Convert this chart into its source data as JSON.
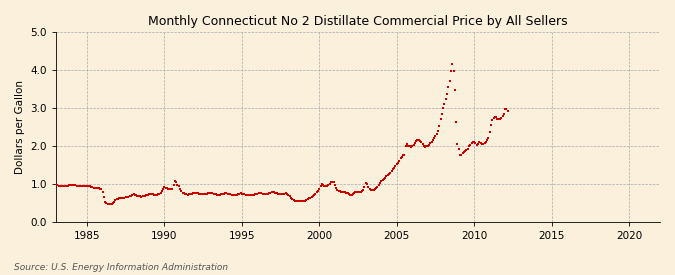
{
  "title": "Monthly Connecticut No 2 Distillate Commercial Price by All Sellers",
  "ylabel": "Dollars per Gallon",
  "source": "Source: U.S. Energy Information Administration",
  "background_color": "#faf0dc",
  "line_color": "#cc0000",
  "xlim": [
    1983.0,
    2022.0
  ],
  "ylim": [
    0.0,
    5.0
  ],
  "yticks": [
    0.0,
    1.0,
    2.0,
    3.0,
    4.0,
    5.0
  ],
  "xticks": [
    1985,
    1990,
    1995,
    2000,
    2005,
    2010,
    2015,
    2020
  ],
  "data": [
    [
      1983.0,
      0.961
    ],
    [
      1983.083,
      0.955
    ],
    [
      1983.167,
      0.952
    ],
    [
      1983.25,
      0.949
    ],
    [
      1983.333,
      0.944
    ],
    [
      1983.417,
      0.94
    ],
    [
      1983.5,
      0.936
    ],
    [
      1983.583,
      0.94
    ],
    [
      1983.667,
      0.944
    ],
    [
      1983.75,
      0.952
    ],
    [
      1983.833,
      0.958
    ],
    [
      1983.917,
      0.963
    ],
    [
      1984.0,
      0.97
    ],
    [
      1984.083,
      0.965
    ],
    [
      1984.167,
      0.96
    ],
    [
      1984.25,
      0.955
    ],
    [
      1984.333,
      0.948
    ],
    [
      1984.417,
      0.943
    ],
    [
      1984.5,
      0.935
    ],
    [
      1984.583,
      0.93
    ],
    [
      1984.667,
      0.928
    ],
    [
      1984.75,
      0.93
    ],
    [
      1984.833,
      0.935
    ],
    [
      1984.917,
      0.94
    ],
    [
      1985.0,
      0.942
    ],
    [
      1985.083,
      0.938
    ],
    [
      1985.167,
      0.93
    ],
    [
      1985.25,
      0.92
    ],
    [
      1985.333,
      0.91
    ],
    [
      1985.417,
      0.9
    ],
    [
      1985.5,
      0.892
    ],
    [
      1985.583,
      0.888
    ],
    [
      1985.667,
      0.882
    ],
    [
      1985.75,
      0.878
    ],
    [
      1985.833,
      0.872
    ],
    [
      1985.917,
      0.868
    ],
    [
      1986.0,
      0.78
    ],
    [
      1986.083,
      0.64
    ],
    [
      1986.167,
      0.53
    ],
    [
      1986.25,
      0.49
    ],
    [
      1986.333,
      0.47
    ],
    [
      1986.417,
      0.462
    ],
    [
      1986.5,
      0.465
    ],
    [
      1986.583,
      0.475
    ],
    [
      1986.667,
      0.5
    ],
    [
      1986.75,
      0.53
    ],
    [
      1986.833,
      0.56
    ],
    [
      1986.917,
      0.59
    ],
    [
      1987.0,
      0.61
    ],
    [
      1987.083,
      0.618
    ],
    [
      1987.167,
      0.612
    ],
    [
      1987.25,
      0.62
    ],
    [
      1987.333,
      0.628
    ],
    [
      1987.417,
      0.635
    ],
    [
      1987.5,
      0.64
    ],
    [
      1987.583,
      0.648
    ],
    [
      1987.667,
      0.658
    ],
    [
      1987.75,
      0.672
    ],
    [
      1987.833,
      0.69
    ],
    [
      1987.917,
      0.71
    ],
    [
      1988.0,
      0.718
    ],
    [
      1988.083,
      0.708
    ],
    [
      1988.167,
      0.7
    ],
    [
      1988.25,
      0.688
    ],
    [
      1988.333,
      0.678
    ],
    [
      1988.417,
      0.668
    ],
    [
      1988.5,
      0.662
    ],
    [
      1988.583,
      0.665
    ],
    [
      1988.667,
      0.67
    ],
    [
      1988.75,
      0.68
    ],
    [
      1988.833,
      0.695
    ],
    [
      1988.917,
      0.715
    ],
    [
      1989.0,
      0.73
    ],
    [
      1989.083,
      0.728
    ],
    [
      1989.167,
      0.722
    ],
    [
      1989.25,
      0.718
    ],
    [
      1989.333,
      0.712
    ],
    [
      1989.417,
      0.708
    ],
    [
      1989.5,
      0.712
    ],
    [
      1989.583,
      0.72
    ],
    [
      1989.667,
      0.735
    ],
    [
      1989.75,
      0.758
    ],
    [
      1989.833,
      0.8
    ],
    [
      1989.917,
      0.855
    ],
    [
      1990.0,
      0.908
    ],
    [
      1990.083,
      0.9
    ],
    [
      1990.167,
      0.888
    ],
    [
      1990.25,
      0.875
    ],
    [
      1990.333,
      0.862
    ],
    [
      1990.417,
      0.858
    ],
    [
      1990.5,
      0.868
    ],
    [
      1990.583,
      0.975
    ],
    [
      1990.667,
      1.06
    ],
    [
      1990.75,
      1.048
    ],
    [
      1990.833,
      0.98
    ],
    [
      1990.917,
      0.942
    ],
    [
      1991.0,
      0.87
    ],
    [
      1991.083,
      0.8
    ],
    [
      1991.167,
      0.762
    ],
    [
      1991.25,
      0.745
    ],
    [
      1991.333,
      0.73
    ],
    [
      1991.417,
      0.718
    ],
    [
      1991.5,
      0.712
    ],
    [
      1991.583,
      0.718
    ],
    [
      1991.667,
      0.725
    ],
    [
      1991.75,
      0.735
    ],
    [
      1991.833,
      0.748
    ],
    [
      1991.917,
      0.762
    ],
    [
      1992.0,
      0.768
    ],
    [
      1992.083,
      0.758
    ],
    [
      1992.167,
      0.748
    ],
    [
      1992.25,
      0.74
    ],
    [
      1992.333,
      0.732
    ],
    [
      1992.417,
      0.725
    ],
    [
      1992.5,
      0.72
    ],
    [
      1992.583,
      0.722
    ],
    [
      1992.667,
      0.728
    ],
    [
      1992.75,
      0.738
    ],
    [
      1992.833,
      0.748
    ],
    [
      1992.917,
      0.758
    ],
    [
      1993.0,
      0.762
    ],
    [
      1993.083,
      0.752
    ],
    [
      1993.167,
      0.742
    ],
    [
      1993.25,
      0.732
    ],
    [
      1993.333,
      0.722
    ],
    [
      1993.417,
      0.715
    ],
    [
      1993.5,
      0.71
    ],
    [
      1993.583,
      0.712
    ],
    [
      1993.667,
      0.718
    ],
    [
      1993.75,
      0.728
    ],
    [
      1993.833,
      0.738
    ],
    [
      1993.917,
      0.748
    ],
    [
      1994.0,
      0.748
    ],
    [
      1994.083,
      0.738
    ],
    [
      1994.167,
      0.728
    ],
    [
      1994.25,
      0.718
    ],
    [
      1994.333,
      0.71
    ],
    [
      1994.417,
      0.702
    ],
    [
      1994.5,
      0.698
    ],
    [
      1994.583,
      0.7
    ],
    [
      1994.667,
      0.708
    ],
    [
      1994.75,
      0.72
    ],
    [
      1994.833,
      0.735
    ],
    [
      1994.917,
      0.748
    ],
    [
      1995.0,
      0.742
    ],
    [
      1995.083,
      0.732
    ],
    [
      1995.167,
      0.722
    ],
    [
      1995.25,
      0.712
    ],
    [
      1995.333,
      0.705
    ],
    [
      1995.417,
      0.698
    ],
    [
      1995.5,
      0.692
    ],
    [
      1995.583,
      0.695
    ],
    [
      1995.667,
      0.702
    ],
    [
      1995.75,
      0.712
    ],
    [
      1995.833,
      0.722
    ],
    [
      1995.917,
      0.732
    ],
    [
      1996.0,
      0.742
    ],
    [
      1996.083,
      0.752
    ],
    [
      1996.167,
      0.762
    ],
    [
      1996.25,
      0.755
    ],
    [
      1996.333,
      0.74
    ],
    [
      1996.417,
      0.728
    ],
    [
      1996.5,
      0.722
    ],
    [
      1996.583,
      0.728
    ],
    [
      1996.667,
      0.738
    ],
    [
      1996.75,
      0.752
    ],
    [
      1996.833,
      0.768
    ],
    [
      1996.917,
      0.782
    ],
    [
      1997.0,
      0.785
    ],
    [
      1997.083,
      0.772
    ],
    [
      1997.167,
      0.76
    ],
    [
      1997.25,
      0.748
    ],
    [
      1997.333,
      0.738
    ],
    [
      1997.417,
      0.728
    ],
    [
      1997.5,
      0.722
    ],
    [
      1997.583,
      0.722
    ],
    [
      1997.667,
      0.728
    ],
    [
      1997.75,
      0.738
    ],
    [
      1997.833,
      0.745
    ],
    [
      1997.917,
      0.738
    ],
    [
      1998.0,
      0.705
    ],
    [
      1998.083,
      0.668
    ],
    [
      1998.167,
      0.628
    ],
    [
      1998.25,
      0.598
    ],
    [
      1998.333,
      0.572
    ],
    [
      1998.417,
      0.552
    ],
    [
      1998.5,
      0.54
    ],
    [
      1998.583,
      0.538
    ],
    [
      1998.667,
      0.542
    ],
    [
      1998.75,
      0.548
    ],
    [
      1998.833,
      0.552
    ],
    [
      1998.917,
      0.548
    ],
    [
      1999.0,
      0.542
    ],
    [
      1999.083,
      0.548
    ],
    [
      1999.167,
      0.562
    ],
    [
      1999.25,
      0.588
    ],
    [
      1999.333,
      0.615
    ],
    [
      1999.417,
      0.638
    ],
    [
      1999.5,
      0.658
    ],
    [
      1999.583,
      0.678
    ],
    [
      1999.667,
      0.7
    ],
    [
      1999.75,
      0.73
    ],
    [
      1999.833,
      0.77
    ],
    [
      1999.917,
      0.82
    ],
    [
      2000.0,
      0.875
    ],
    [
      2000.083,
      0.94
    ],
    [
      2000.167,
      0.988
    ],
    [
      2000.25,
      0.968
    ],
    [
      2000.333,
      0.948
    ],
    [
      2000.417,
      0.94
    ],
    [
      2000.5,
      0.952
    ],
    [
      2000.583,
      0.975
    ],
    [
      2000.667,
      1.002
    ],
    [
      2000.75,
      1.038
    ],
    [
      2000.833,
      1.058
    ],
    [
      2000.917,
      1.038
    ],
    [
      2001.0,
      0.978
    ],
    [
      2001.083,
      0.895
    ],
    [
      2001.167,
      0.845
    ],
    [
      2001.25,
      0.822
    ],
    [
      2001.333,
      0.808
    ],
    [
      2001.417,
      0.795
    ],
    [
      2001.5,
      0.785
    ],
    [
      2001.583,
      0.78
    ],
    [
      2001.667,
      0.772
    ],
    [
      2001.75,
      0.768
    ],
    [
      2001.833,
      0.755
    ],
    [
      2001.917,
      0.722
    ],
    [
      2002.0,
      0.705
    ],
    [
      2002.083,
      0.712
    ],
    [
      2002.167,
      0.738
    ],
    [
      2002.25,
      0.768
    ],
    [
      2002.333,
      0.782
    ],
    [
      2002.417,
      0.778
    ],
    [
      2002.5,
      0.772
    ],
    [
      2002.583,
      0.778
    ],
    [
      2002.667,
      0.792
    ],
    [
      2002.75,
      0.81
    ],
    [
      2002.833,
      0.848
    ],
    [
      2002.917,
      0.918
    ],
    [
      2003.0,
      1.028
    ],
    [
      2003.083,
      0.985
    ],
    [
      2003.167,
      0.918
    ],
    [
      2003.25,
      0.862
    ],
    [
      2003.333,
      0.838
    ],
    [
      2003.417,
      0.84
    ],
    [
      2003.5,
      0.848
    ],
    [
      2003.583,
      0.862
    ],
    [
      2003.667,
      0.882
    ],
    [
      2003.75,
      0.922
    ],
    [
      2003.833,
      0.978
    ],
    [
      2003.917,
      1.028
    ],
    [
      2004.0,
      1.075
    ],
    [
      2004.083,
      1.098
    ],
    [
      2004.167,
      1.118
    ],
    [
      2004.25,
      1.148
    ],
    [
      2004.333,
      1.198
    ],
    [
      2004.417,
      1.228
    ],
    [
      2004.5,
      1.262
    ],
    [
      2004.583,
      1.295
    ],
    [
      2004.667,
      1.328
    ],
    [
      2004.75,
      1.378
    ],
    [
      2004.833,
      1.428
    ],
    [
      2004.917,
      1.478
    ],
    [
      2005.0,
      1.528
    ],
    [
      2005.083,
      1.558
    ],
    [
      2005.167,
      1.598
    ],
    [
      2005.25,
      1.668
    ],
    [
      2005.333,
      1.718
    ],
    [
      2005.417,
      1.745
    ],
    [
      2005.5,
      1.765
    ],
    [
      2005.583,
      1.992
    ],
    [
      2005.667,
      2.038
    ],
    [
      2005.75,
      2.005
    ],
    [
      2005.833,
      1.982
    ],
    [
      2005.917,
      1.968
    ],
    [
      2006.0,
      1.988
    ],
    [
      2006.083,
      2.018
    ],
    [
      2006.167,
      2.068
    ],
    [
      2006.25,
      2.118
    ],
    [
      2006.333,
      2.148
    ],
    [
      2006.417,
      2.142
    ],
    [
      2006.5,
      2.128
    ],
    [
      2006.583,
      2.098
    ],
    [
      2006.667,
      2.058
    ],
    [
      2006.75,
      1.998
    ],
    [
      2006.833,
      1.978
    ],
    [
      2006.917,
      1.988
    ],
    [
      2007.0,
      2.008
    ],
    [
      2007.083,
      2.028
    ],
    [
      2007.167,
      2.068
    ],
    [
      2007.25,
      2.108
    ],
    [
      2007.333,
      2.148
    ],
    [
      2007.417,
      2.198
    ],
    [
      2007.5,
      2.248
    ],
    [
      2007.583,
      2.308
    ],
    [
      2007.667,
      2.388
    ],
    [
      2007.75,
      2.518
    ],
    [
      2007.833,
      2.698
    ],
    [
      2007.917,
      2.838
    ],
    [
      2008.0,
      2.988
    ],
    [
      2008.083,
      3.108
    ],
    [
      2008.167,
      3.228
    ],
    [
      2008.25,
      3.378
    ],
    [
      2008.333,
      3.538
    ],
    [
      2008.417,
      3.718
    ],
    [
      2008.5,
      3.978
    ],
    [
      2008.583,
      4.148
    ],
    [
      2008.667,
      3.968
    ],
    [
      2008.75,
      3.468
    ],
    [
      2008.833,
      2.618
    ],
    [
      2008.917,
      2.048
    ],
    [
      2009.0,
      1.908
    ],
    [
      2009.083,
      1.768
    ],
    [
      2009.167,
      1.752
    ],
    [
      2009.25,
      1.808
    ],
    [
      2009.333,
      1.842
    ],
    [
      2009.417,
      1.858
    ],
    [
      2009.5,
      1.878
    ],
    [
      2009.583,
      1.928
    ],
    [
      2009.667,
      1.988
    ],
    [
      2009.75,
      2.028
    ],
    [
      2009.833,
      2.068
    ],
    [
      2009.917,
      2.088
    ],
    [
      2010.0,
      2.108
    ],
    [
      2010.083,
      2.068
    ],
    [
      2010.167,
      2.028
    ],
    [
      2010.25,
      2.058
    ],
    [
      2010.333,
      2.088
    ],
    [
      2010.417,
      2.068
    ],
    [
      2010.5,
      2.048
    ],
    [
      2010.583,
      2.058
    ],
    [
      2010.667,
      2.078
    ],
    [
      2010.75,
      2.108
    ],
    [
      2010.833,
      2.148
    ],
    [
      2010.917,
      2.208
    ],
    [
      2011.0,
      2.368
    ],
    [
      2011.083,
      2.558
    ],
    [
      2011.167,
      2.668
    ],
    [
      2011.25,
      2.738
    ],
    [
      2011.333,
      2.768
    ],
    [
      2011.417,
      2.758
    ],
    [
      2011.5,
      2.718
    ],
    [
      2011.583,
      2.698
    ],
    [
      2011.667,
      2.698
    ],
    [
      2011.75,
      2.738
    ],
    [
      2011.833,
      2.778
    ],
    [
      2011.917,
      2.828
    ],
    [
      2012.0,
      2.968
    ],
    [
      2012.083,
      2.978
    ],
    [
      2012.167,
      2.928
    ]
  ]
}
